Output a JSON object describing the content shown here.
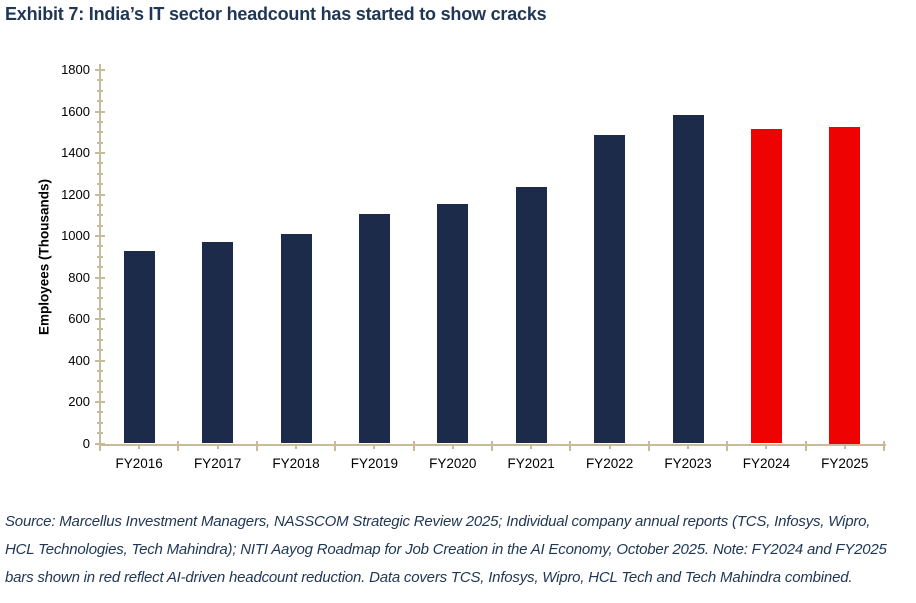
{
  "exhibit_title": "Exhibit 7: India’s IT sector headcount has started to show cracks",
  "source_note": "Source: Marcellus Investment Managers, NASSCOM Strategic Review 2025; Individual company annual reports (TCS, Infosys, Wipro, HCL Technologies, Tech Mahindra); NITI Aayog Roadmap for Job Creation in the AI Economy, October 2025. Note: FY2024 and FY2025 bars shown in red reflect AI-driven headcount reduction. Data covers TCS, Infosys, Wipro, HCL Tech and Tech Mahindra combined.",
  "chart_data": {
    "type": "bar",
    "title": "Exhibit 7: India’s IT sector headcount has started to show cracks",
    "categories": [
      "FY2016",
      "FY2017",
      "FY2018",
      "FY2019",
      "FY2020",
      "FY2021",
      "FY2022",
      "FY2023",
      "FY2024",
      "FY2025"
    ],
    "values": [
      930,
      970,
      1008,
      1105,
      1155,
      1235,
      1487,
      1583,
      1517,
      1525
    ],
    "highlight_categories": [
      "FY2024",
      "FY2025"
    ],
    "xlabel": "",
    "ylabel": "Employees (Thousands)",
    "ylim": [
      0,
      1800
    ],
    "ytick_step": 200,
    "ytick_minor_step": 50,
    "grid": false,
    "legend": false,
    "colors": {
      "bar": "#1c2b4a",
      "highlight": "#ee0202",
      "axis": "#c8bb9b",
      "text": "#000000",
      "title": "#1f3655",
      "note": "#1f3655"
    }
  }
}
